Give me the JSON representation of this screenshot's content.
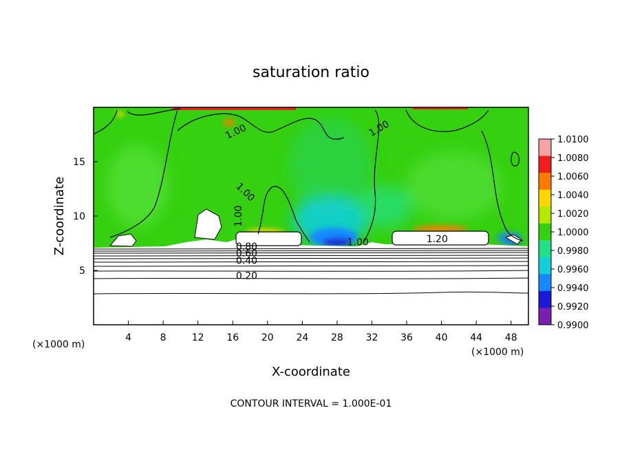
{
  "chart_data": {
    "type": "heatmap",
    "title": "saturation ratio",
    "xlabel": "X-coordinate",
    "ylabel": "Z-coordinate",
    "x_unit_left": "(×1000 m)",
    "x_unit_right": "(×1000 m)",
    "xlim": [
      0,
      50
    ],
    "ylim": [
      0,
      20
    ],
    "x_ticks": [
      4,
      8,
      12,
      16,
      20,
      24,
      28,
      32,
      36,
      40,
      44,
      48
    ],
    "y_ticks": [
      5,
      10,
      15
    ],
    "colorbar": {
      "ticks": [
        "1.0100",
        "1.0080",
        "1.0060",
        "1.0040",
        "1.0020",
        "1.0000",
        "0.9980",
        "0.9960",
        "0.9940",
        "0.9920",
        "0.9900"
      ],
      "colors": [
        "#f4a4a4",
        "#ee1f1f",
        "#ff7a00",
        "#ffd700",
        "#b5e800",
        "#35d00f",
        "#21e087",
        "#12cfd8",
        "#1788ff",
        "#1a1ad6",
        "#7a1fb0"
      ]
    },
    "contour_labels": [
      {
        "text": "1.00",
        "x": 17,
        "z": 10
      },
      {
        "text": "1.00",
        "x": 16.5,
        "z": 17.5
      },
      {
        "text": "1.00",
        "x": 17.2,
        "z": 12
      },
      {
        "text": "1.00",
        "x": 33,
        "z": 17.8
      },
      {
        "text": "1.00",
        "x": 30.4,
        "z": 7.3
      },
      {
        "text": "1.20",
        "x": 39.5,
        "z": 7.6
      },
      {
        "text": "0.80",
        "x": 17.6,
        "z": 6.9
      },
      {
        "text": "0.60",
        "x": 17.6,
        "z": 6.3
      },
      {
        "text": "0.40",
        "x": 17.6,
        "z": 5.6
      },
      {
        "text": "0.20",
        "x": 17.6,
        "z": 4.2
      }
    ],
    "footer": "CONTOUR INTERVAL = 1.000E-01",
    "grid": false,
    "legend_position": "right"
  }
}
